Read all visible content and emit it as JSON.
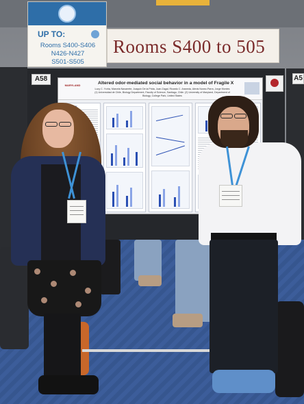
{
  "banner": {
    "up_to": "UP TO:",
    "rooms_line1": "Rooms S400-S406",
    "rooms_line2": "N426-N427",
    "rooms_line3": "S501-S505"
  },
  "rooms_sign": {
    "text": "Rooms S400 to 505"
  },
  "booth_tags": {
    "left": "A58",
    "right": "A5"
  },
  "poster": {
    "title": "Altered odor-mediated social behavior in a model of Fragile X Syndrome",
    "authors": "Lucy C. Ycíria, Marcela Navarrete, Joaquin De la Prida, Juan Zagal, Ricardo C. Araneda, Alexis Nunez-Parra, Jorge Montes",
    "affiliations": "(1) Universidad de Chile, Biology Department, Faculty of Science, Santiago, Chile. (2) University of Maryland, Department of Biology, College Park, United States",
    "logo_left": "MARYLAND",
    "summary_label": "SUMMARY"
  }
}
